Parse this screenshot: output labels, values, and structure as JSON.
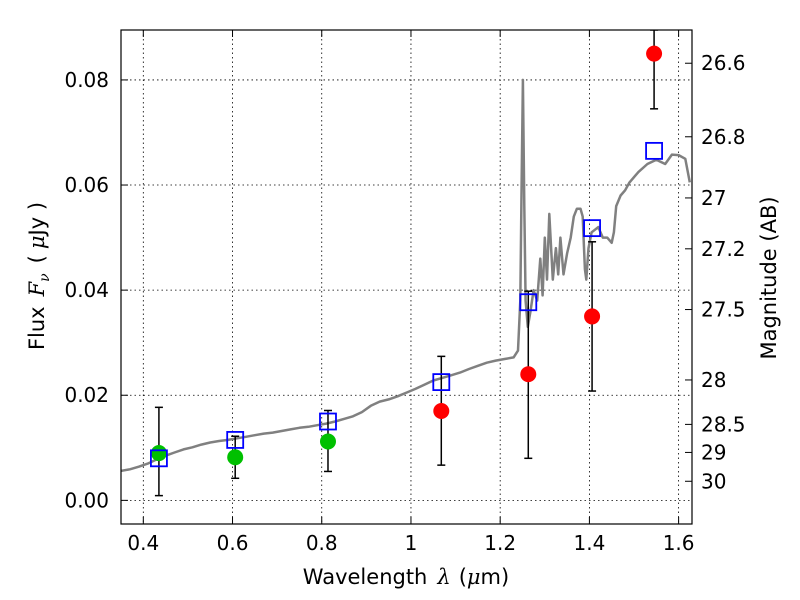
{
  "chart_data": {
    "type": "scatter",
    "xlabel": {
      "prefix": "Wavelength",
      "symbol": "λ",
      "unit_open": "(",
      "unit_mu": "μ",
      "unit_rest": "m)"
    },
    "ylabel": {
      "prefix": "Flux",
      "symbol": "F",
      "sub": "ν",
      "unit_open": "(",
      "unit_mu": "μ",
      "unit_rest": "Jy )"
    },
    "ylabel_right": "Magnitude (AB)",
    "xlim": [
      0.35,
      1.63
    ],
    "ylim": [
      -0.0045,
      0.0895
    ],
    "xticks": [
      0.4,
      0.6,
      0.8,
      1.0,
      1.2,
      1.4,
      1.6
    ],
    "xtick_labels": [
      "0.4",
      "0.6",
      "0.8",
      "1",
      "1.2",
      "1.4",
      "1.6"
    ],
    "yticks": [
      0.0,
      0.02,
      0.04,
      0.06,
      0.08
    ],
    "ytick_labels": [
      "0.00",
      "0.02",
      "0.04",
      "0.06",
      "0.08"
    ],
    "right_ticks": [
      {
        "label": "26.6",
        "mag": 26.6
      },
      {
        "label": "26.8",
        "mag": 26.8
      },
      {
        "label": "27",
        "mag": 27.0
      },
      {
        "label": "27.2",
        "mag": 27.2
      },
      {
        "label": "27.5",
        "mag": 27.5
      },
      {
        "label": "28",
        "mag": 28.0
      },
      {
        "label": "28.5",
        "mag": 28.5
      },
      {
        "label": "29",
        "mag": 29.0
      },
      {
        "label": "30",
        "mag": 30.0
      }
    ],
    "grid": true,
    "colors": {
      "model": "#808080",
      "green": "#00c000",
      "red": "#ff0000",
      "blue": "#0000ff",
      "error": "#000000"
    },
    "series": [
      {
        "type": "line",
        "points": [
          [
            0.35,
            0.0056
          ],
          [
            0.37,
            0.0059
          ],
          [
            0.39,
            0.0064
          ],
          [
            0.41,
            0.007
          ],
          [
            0.43,
            0.0078
          ],
          [
            0.45,
            0.0085
          ],
          [
            0.47,
            0.0091
          ],
          [
            0.49,
            0.0097
          ],
          [
            0.51,
            0.0101
          ],
          [
            0.53,
            0.0106
          ],
          [
            0.55,
            0.011
          ],
          [
            0.57,
            0.0113
          ],
          [
            0.59,
            0.0115
          ],
          [
            0.61,
            0.0118
          ],
          [
            0.63,
            0.0121
          ],
          [
            0.65,
            0.0124
          ],
          [
            0.67,
            0.0127
          ],
          [
            0.69,
            0.0129
          ],
          [
            0.71,
            0.0132
          ],
          [
            0.73,
            0.0135
          ],
          [
            0.75,
            0.0138
          ],
          [
            0.77,
            0.014
          ],
          [
            0.79,
            0.0143
          ],
          [
            0.81,
            0.0146
          ],
          [
            0.83,
            0.015
          ],
          [
            0.85,
            0.0155
          ],
          [
            0.87,
            0.016
          ],
          [
            0.89,
            0.0168
          ],
          [
            0.91,
            0.018
          ],
          [
            0.93,
            0.0188
          ],
          [
            0.95,
            0.0192
          ],
          [
            0.97,
            0.0198
          ],
          [
            0.99,
            0.0205
          ],
          [
            1.01,
            0.0212
          ],
          [
            1.03,
            0.022
          ],
          [
            1.05,
            0.0228
          ],
          [
            1.07,
            0.0233
          ],
          [
            1.09,
            0.0238
          ],
          [
            1.11,
            0.0243
          ],
          [
            1.13,
            0.025
          ],
          [
            1.15,
            0.0256
          ],
          [
            1.17,
            0.0262
          ],
          [
            1.19,
            0.0266
          ],
          [
            1.21,
            0.0269
          ],
          [
            1.23,
            0.0272
          ],
          [
            1.24,
            0.0285
          ],
          [
            1.245,
            0.038
          ],
          [
            1.248,
            0.06
          ],
          [
            1.251,
            0.08
          ],
          [
            1.254,
            0.056
          ],
          [
            1.257,
            0.038
          ],
          [
            1.262,
            0.033
          ],
          [
            1.268,
            0.036
          ],
          [
            1.275,
            0.04
          ],
          [
            1.283,
            0.038
          ],
          [
            1.29,
            0.046
          ],
          [
            1.295,
            0.039
          ],
          [
            1.3,
            0.05
          ],
          [
            1.305,
            0.042
          ],
          [
            1.31,
            0.0545
          ],
          [
            1.318,
            0.042
          ],
          [
            1.325,
            0.048
          ],
          [
            1.33,
            0.043
          ],
          [
            1.335,
            0.05
          ],
          [
            1.342,
            0.043
          ],
          [
            1.35,
            0.047
          ],
          [
            1.358,
            0.05
          ],
          [
            1.365,
            0.054
          ],
          [
            1.372,
            0.0555
          ],
          [
            1.38,
            0.0555
          ],
          [
            1.385,
            0.054
          ],
          [
            1.39,
            0.044
          ],
          [
            1.393,
            0.042
          ],
          [
            1.398,
            0.048
          ],
          [
            1.405,
            0.051
          ],
          [
            1.42,
            0.052
          ],
          [
            1.43,
            0.05
          ],
          [
            1.44,
            0.05
          ],
          [
            1.45,
            0.049
          ],
          [
            1.455,
            0.051
          ],
          [
            1.46,
            0.056
          ],
          [
            1.47,
            0.058
          ],
          [
            1.48,
            0.059
          ],
          [
            1.49,
            0.0605
          ],
          [
            1.51,
            0.0625
          ],
          [
            1.53,
            0.064
          ],
          [
            1.55,
            0.0648
          ],
          [
            1.57,
            0.064
          ],
          [
            1.585,
            0.0658
          ],
          [
            1.6,
            0.0657
          ],
          [
            1.615,
            0.065
          ],
          [
            1.625,
            0.0605
          ]
        ]
      },
      {
        "type": "scatter",
        "marker": "circle",
        "color": "green",
        "points": [
          {
            "x": 0.435,
            "y": 0.009
          },
          {
            "x": 0.606,
            "y": 0.0082
          },
          {
            "x": 0.814,
            "y": 0.0112
          }
        ]
      },
      {
        "type": "scatter",
        "marker": "circle",
        "color": "red",
        "points": [
          {
            "x": 1.068,
            "y": 0.017
          },
          {
            "x": 1.263,
            "y": 0.024
          },
          {
            "x": 1.406,
            "y": 0.035
          },
          {
            "x": 1.545,
            "y": 0.085
          }
        ]
      },
      {
        "type": "scatter",
        "marker": "square-open",
        "color": "blue",
        "points": [
          {
            "x": 0.435,
            "y": 0.008
          },
          {
            "x": 0.606,
            "y": 0.0115
          },
          {
            "x": 0.814,
            "y": 0.015
          },
          {
            "x": 1.068,
            "y": 0.0225
          },
          {
            "x": 1.263,
            "y": 0.0377
          },
          {
            "x": 1.406,
            "y": 0.0518
          },
          {
            "x": 1.545,
            "y": 0.0665
          }
        ]
      }
    ],
    "error_bars": [
      {
        "x": 0.435,
        "low": 0.0009,
        "high": 0.0177
      },
      {
        "x": 0.606,
        "low": 0.0042,
        "high": 0.0122
      },
      {
        "x": 0.814,
        "low": 0.0055,
        "high": 0.0171
      },
      {
        "x": 1.068,
        "low": 0.0067,
        "high": 0.0274
      },
      {
        "x": 1.263,
        "low": 0.008,
        "high": 0.0398
      },
      {
        "x": 1.406,
        "low": 0.0208,
        "high": 0.0492
      },
      {
        "x": 1.545,
        "low": 0.0745,
        "high": 0.0895
      }
    ]
  }
}
